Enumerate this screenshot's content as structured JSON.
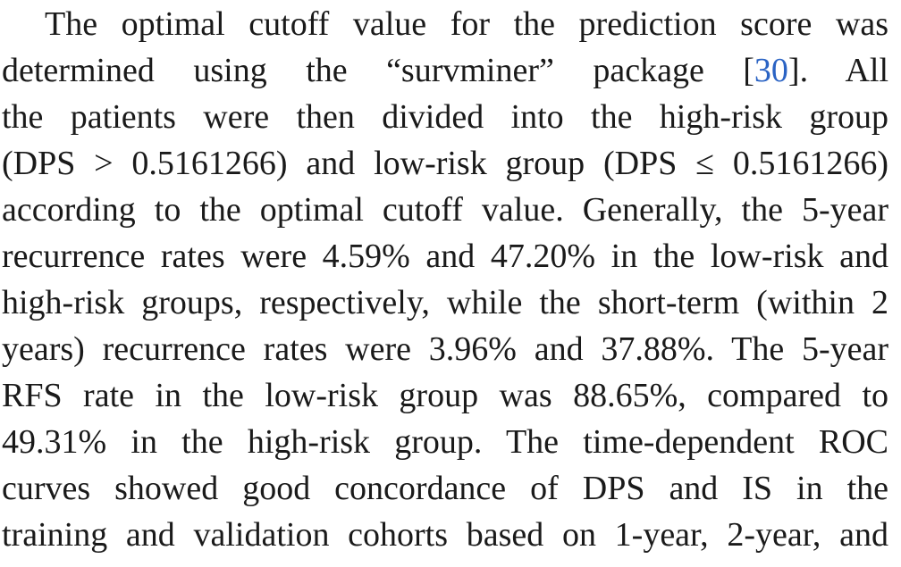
{
  "paragraph": {
    "lines": [
      {
        "text": "The optimal cutoff value for the prediction score was"
      },
      {
        "text": "determined using the “survminer” package [",
        "cite": "30",
        "after": "]. All"
      },
      {
        "text": "the patients were then divided into the high-risk group"
      },
      {
        "text": "(DPS > 0.5161266) and low-risk group (DPS ≤ 0.5161266)"
      },
      {
        "text": "according to the optimal cutoff value. Generally, the 5-year"
      },
      {
        "text": "recurrence rates were 4.59% and 47.20% in the low-risk and"
      },
      {
        "text": "high-risk groups, respectively, while the short-term (within 2"
      },
      {
        "text": "years) recurrence rates were 3.96% and 37.88%. The 5-year"
      },
      {
        "text": "RFS rate in the low-risk group was 88.65%, compared to"
      },
      {
        "text": "49.31% in the high-risk group. The time-dependent ROC"
      },
      {
        "text": "curves showed good concordance of DPS and IS in the"
      },
      {
        "text": "training and validation cohorts based on 1-year, 2-year, and"
      }
    ]
  }
}
